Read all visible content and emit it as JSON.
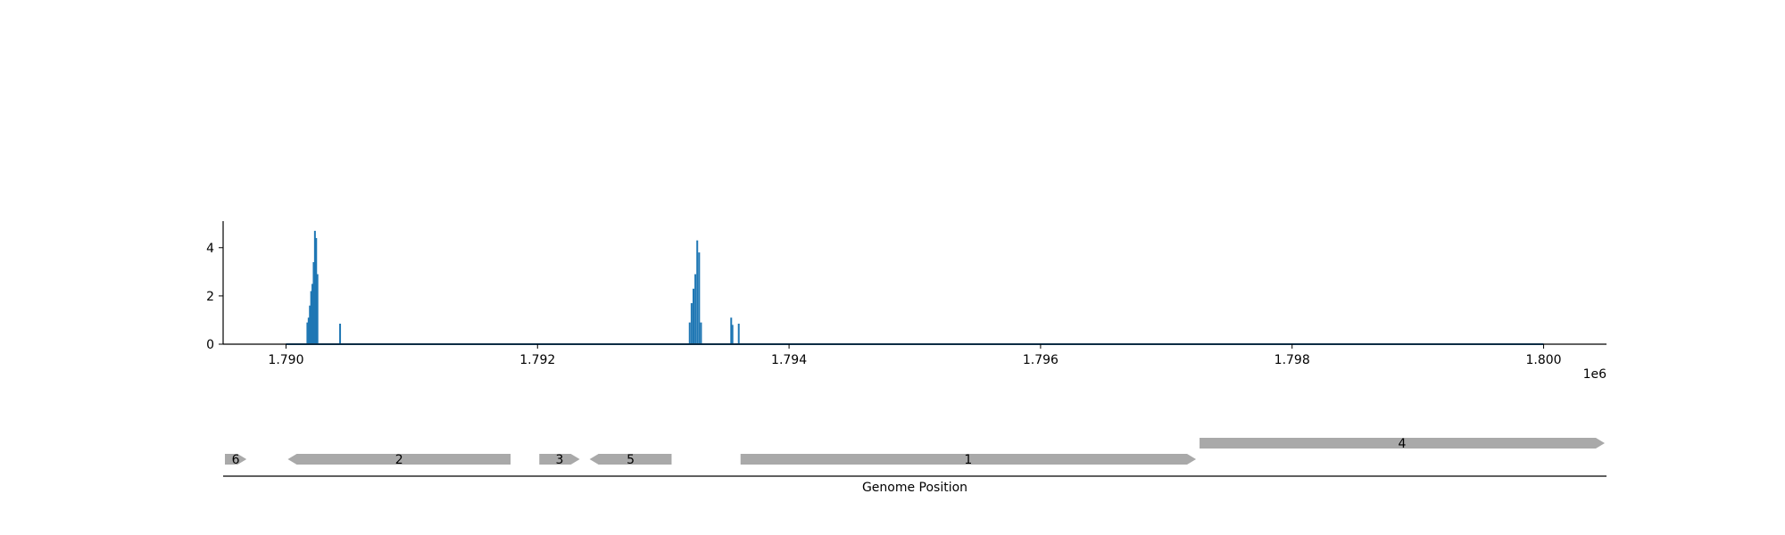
{
  "chart_data": [
    {
      "type": "line",
      "title": "",
      "xlabel": "",
      "ylabel": "",
      "x_offset_label": "1e6",
      "xlim": [
        1789500,
        1800500
      ],
      "ylim": [
        0,
        5.1
      ],
      "xticks": [
        1790000,
        1792000,
        1794000,
        1796000,
        1798000,
        1800000
      ],
      "xtick_labels": [
        "1.790",
        "1.792",
        "1.794",
        "1.796",
        "1.798",
        "1.800"
      ],
      "yticks": [
        0,
        2,
        4
      ],
      "ytick_labels": [
        "0",
        "2",
        "4"
      ],
      "grid": false,
      "legend": "none",
      "series": [
        {
          "color": "#1f77b4",
          "baseline": [
            1790000,
            1800000
          ],
          "spikes": [
            {
              "x": 1790170,
              "y": 0.9
            },
            {
              "x": 1790180,
              "y": 1.1
            },
            {
              "x": 1790190,
              "y": 1.6
            },
            {
              "x": 1790200,
              "y": 2.2
            },
            {
              "x": 1790210,
              "y": 2.5
            },
            {
              "x": 1790220,
              "y": 3.4
            },
            {
              "x": 1790230,
              "y": 4.7
            },
            {
              "x": 1790240,
              "y": 4.4
            },
            {
              "x": 1790250,
              "y": 2.9
            },
            {
              "x": 1790430,
              "y": 0.85
            },
            {
              "x": 1793210,
              "y": 0.9
            },
            {
              "x": 1793225,
              "y": 1.7
            },
            {
              "x": 1793240,
              "y": 2.3
            },
            {
              "x": 1793255,
              "y": 2.9
            },
            {
              "x": 1793270,
              "y": 4.3
            },
            {
              "x": 1793285,
              "y": 3.8
            },
            {
              "x": 1793300,
              "y": 0.9
            },
            {
              "x": 1793540,
              "y": 1.1
            },
            {
              "x": 1793550,
              "y": 0.8
            },
            {
              "x": 1793600,
              "y": 0.85
            }
          ]
        }
      ]
    },
    {
      "type": "gene_map",
      "xlabel": "Genome Position",
      "xlim": [
        1789500,
        1800500
      ],
      "color": "#a9a9a9",
      "genes": [
        {
          "label": "6",
          "start": 1789500,
          "end": 1789700,
          "strand": "+",
          "row": 0
        },
        {
          "label": "2",
          "start": 1790000,
          "end": 1791800,
          "strand": "-",
          "row": 0
        },
        {
          "label": "3",
          "start": 1792000,
          "end": 1792350,
          "strand": "+",
          "row": 0
        },
        {
          "label": "5",
          "start": 1792400,
          "end": 1793080,
          "strand": "-",
          "row": 0
        },
        {
          "label": "1",
          "start": 1793600,
          "end": 1797250,
          "strand": "+",
          "row": 0
        },
        {
          "label": "4",
          "start": 1797250,
          "end": 1800500,
          "strand": "+",
          "row": 1
        }
      ]
    }
  ]
}
